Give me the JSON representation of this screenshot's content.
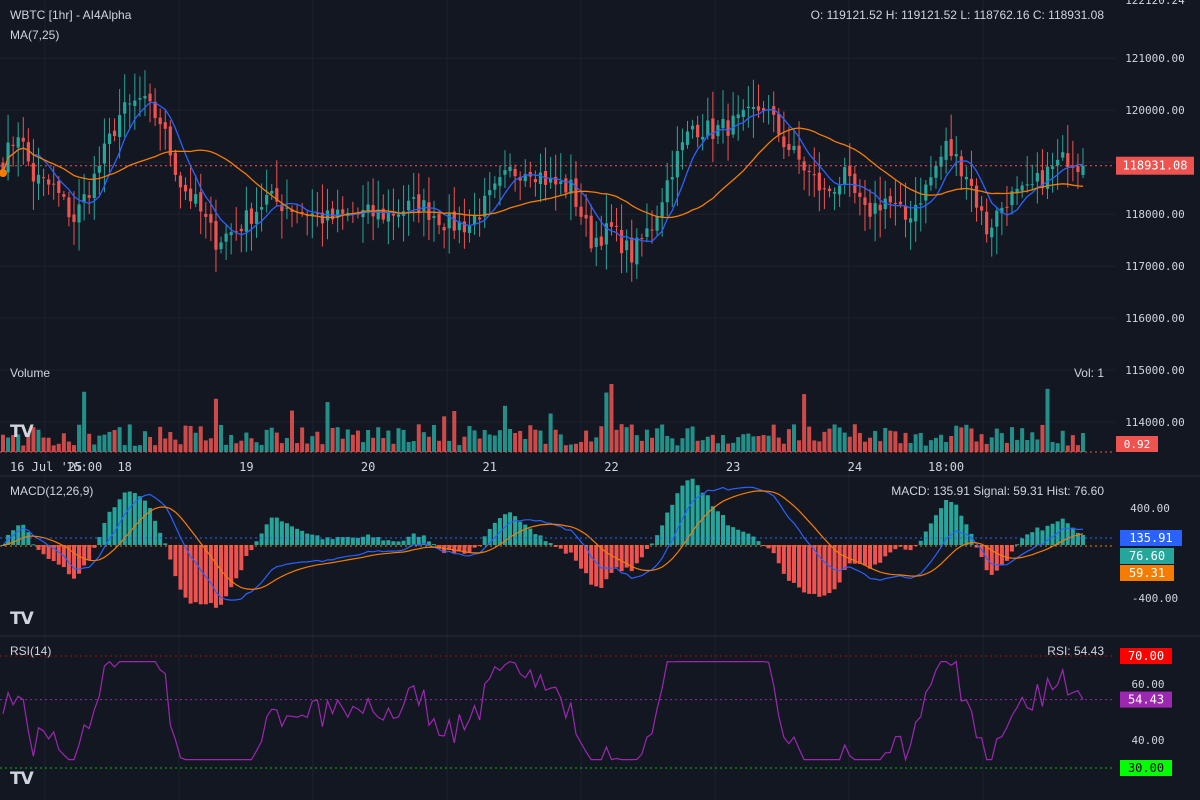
{
  "header": {
    "title": "WBTC [1hr] - AI4Alpha",
    "ohlc": "O: 119121.52 H: 119121.52 L: 118762.16 C: 118931.08",
    "ma_label": "MA(7,25)",
    "volume_label": "Volume",
    "volume_readout": "Vol: 1",
    "macd_label": "MACD(12,26,9)",
    "macd_readout": "MACD: 135.91 Signal: 59.31 Hist: 76.60",
    "rsi_label": "RSI(14)",
    "rsi_readout": "RSI: 54.43"
  },
  "logos": {
    "volume": "TV",
    "macd": "TV",
    "rsi": "TV"
  },
  "chart_data": [
    {
      "type": "candlestick",
      "pane": "price",
      "title": "WBTC [1hr] - AI4Alpha",
      "ylim": [
        115000,
        122120.24
      ],
      "yticks": [
        "121000.00",
        "120000.00",
        "119000.00",
        "118000.00",
        "117000.00",
        "116000.00",
        "115000.00",
        "114000.00"
      ],
      "top_tick": "122120.24",
      "last_price": 118931.08,
      "last_price_label": "118931.08",
      "ma_series": [
        {
          "name": "MA7",
          "color": "#2962ff"
        },
        {
          "name": "MA25",
          "color": "#f57c00"
        }
      ],
      "keypoints": [
        [
          0,
          119000
        ],
        [
          3,
          119600
        ],
        [
          6,
          118700
        ],
        [
          10,
          118500
        ],
        [
          14,
          117900
        ],
        [
          18,
          118700
        ],
        [
          23,
          119900
        ],
        [
          27,
          120200
        ],
        [
          31,
          119800
        ],
        [
          35,
          118600
        ],
        [
          38,
          118200
        ],
        [
          42,
          117500
        ],
        [
          46,
          117700
        ],
        [
          52,
          118300
        ],
        [
          58,
          118100
        ],
        [
          64,
          117900
        ],
        [
          70,
          118000
        ],
        [
          76,
          118000
        ],
        [
          82,
          118200
        ],
        [
          88,
          117800
        ],
        [
          92,
          117800
        ],
        [
          96,
          118300
        ],
        [
          100,
          118800
        ],
        [
          104,
          118900
        ],
        [
          108,
          118600
        ],
        [
          112,
          118500
        ],
        [
          116,
          117500
        ],
        [
          120,
          117700
        ],
        [
          124,
          117200
        ],
        [
          128,
          117800
        ],
        [
          132,
          118900
        ],
        [
          136,
          119700
        ],
        [
          140,
          119600
        ],
        [
          146,
          119800
        ],
        [
          150,
          120100
        ],
        [
          154,
          119400
        ],
        [
          158,
          118900
        ],
        [
          162,
          118400
        ],
        [
          166,
          118700
        ],
        [
          170,
          118000
        ],
        [
          174,
          118300
        ],
        [
          178,
          117900
        ],
        [
          182,
          118500
        ],
        [
          186,
          119300
        ],
        [
          190,
          118800
        ],
        [
          194,
          117700
        ],
        [
          198,
          118300
        ],
        [
          202,
          118400
        ],
        [
          206,
          118800
        ],
        [
          210,
          119100
        ],
        [
          213,
          118931
        ]
      ],
      "candle_count": 214
    },
    {
      "type": "bar",
      "pane": "volume",
      "title": "Volume",
      "last_value_label": "0.92",
      "colors": {
        "up": "#26a69a",
        "down": "#ef5350"
      }
    },
    {
      "type": "bar-line",
      "pane": "macd",
      "title": "MACD(12,26,9)",
      "ylim": [
        -600,
        600
      ],
      "yticks": [
        "400.00",
        "-400.00"
      ],
      "series": [
        {
          "name": "MACD",
          "last": 135.91,
          "label": "135.91",
          "color": "#2962ff"
        },
        {
          "name": "Signal",
          "last": 59.31,
          "label": "59.31",
          "color": "#f57c00"
        },
        {
          "name": "Hist",
          "last": 76.6,
          "label": "76.60",
          "color": "#26a69a"
        }
      ]
    },
    {
      "type": "line",
      "pane": "rsi",
      "title": "RSI(14)",
      "ylim": [
        28,
        72
      ],
      "yticks": [
        "60.00",
        "40.00"
      ],
      "bands": [
        {
          "value": 70,
          "label": "70.00",
          "color": "#ff0000"
        },
        {
          "value": 30,
          "label": "30.00",
          "color": "#00ff00"
        }
      ],
      "last": 54.43,
      "last_label": "54.43",
      "color": "#9c27b0"
    }
  ],
  "xaxis": {
    "labels": [
      {
        "text": "16 Jul '25",
        "index": 0
      },
      {
        "text": "16:00",
        "index": 16
      },
      {
        "text": "18",
        "index": 24
      },
      {
        "text": "19",
        "index": 48
      },
      {
        "text": "20",
        "index": 72
      },
      {
        "text": "21",
        "index": 96
      },
      {
        "text": "22",
        "index": 120
      },
      {
        "text": "23",
        "index": 144
      },
      {
        "text": "24",
        "index": 168
      },
      {
        "text": "18:00",
        "index": 186
      }
    ]
  },
  "colors": {
    "background": "#131722",
    "grid": "#1e222d",
    "up": "#26a69a",
    "down": "#ef5350",
    "text": "#d1d4dc",
    "badge_price": "#ef5350",
    "badge_macd": "#2962ff",
    "badge_hist": "#26a69a",
    "badge_signal": "#f57c00",
    "badge_rsi": "#9c27b0",
    "badge_rsi_upper": "#ff0000",
    "badge_rsi_lower": "#00ff00"
  }
}
